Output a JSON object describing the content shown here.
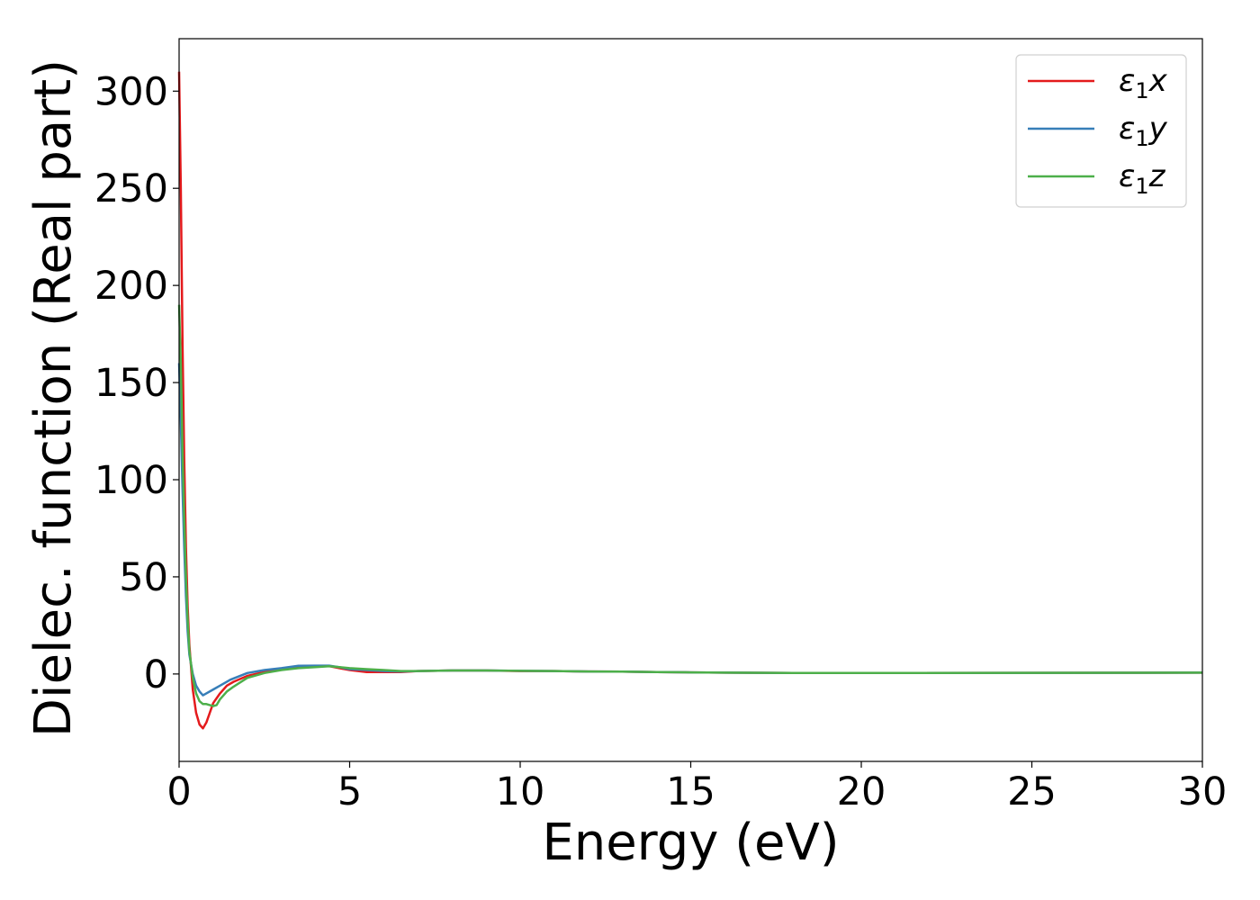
{
  "chart_data": {
    "type": "line",
    "title": "",
    "xlabel": "Energy (eV)",
    "ylabel": "Dielec. function (Real part)",
    "xlim": [
      0,
      30
    ],
    "ylim": [
      -45,
      327
    ],
    "xticks": [
      0,
      5,
      10,
      15,
      20,
      25,
      30
    ],
    "yticks": [
      0,
      50,
      100,
      150,
      200,
      250,
      300
    ],
    "grid": false,
    "legend_position": "top-right",
    "series": [
      {
        "name": "ε1x",
        "legend_base": "ε",
        "legend_sub": "1",
        "legend_suffix": "x",
        "color": "#e41a1c",
        "x": [
          0.0,
          0.05,
          0.1,
          0.15,
          0.2,
          0.25,
          0.3,
          0.4,
          0.5,
          0.6,
          0.7,
          0.8,
          0.9,
          1.0,
          1.2,
          1.4,
          1.6,
          2.0,
          2.5,
          3.0,
          3.5,
          4.0,
          4.4,
          4.7,
          5.0,
          5.5,
          6.0,
          6.5,
          7.0,
          8.0,
          9.0,
          10.0,
          11.0,
          12.0,
          13.0,
          14.0,
          15.0,
          16.0,
          18.0,
          20.0,
          25.0,
          30.0
        ],
        "values": [
          310,
          250,
          170,
          110,
          65,
          35,
          15,
          -8,
          -20,
          -26,
          -28,
          -25,
          -20,
          -15,
          -10,
          -6,
          -4,
          -1,
          1,
          2.5,
          3.5,
          4,
          4,
          3,
          2,
          1,
          1,
          1,
          1.5,
          1.8,
          1.8,
          1.5,
          1.5,
          1.3,
          1.2,
          1.0,
          0.8,
          0.7,
          0.5,
          0.5,
          0.6,
          0.7
        ]
      },
      {
        "name": "ε1y",
        "legend_base": "ε",
        "legend_sub": "1",
        "legend_suffix": "y",
        "color": "#377eb8",
        "x": [
          0.0,
          0.05,
          0.1,
          0.15,
          0.2,
          0.25,
          0.3,
          0.4,
          0.5,
          0.6,
          0.7,
          0.8,
          1.0,
          1.2,
          1.5,
          2.0,
          2.5,
          3.0,
          3.5,
          4.0,
          4.4,
          4.7,
          5.0,
          5.5,
          6.0,
          6.5,
          7.0,
          8.0,
          9.0,
          10.0,
          11.0,
          12.0,
          13.0,
          14.0,
          15.0,
          16.0,
          18.0,
          20.0,
          25.0,
          30.0
        ],
        "values": [
          160,
          130,
          95,
          65,
          40,
          22,
          10,
          0,
          -6,
          -9,
          -11,
          -10,
          -8,
          -6,
          -3,
          0.5,
          2,
          3,
          4.2,
          4.3,
          4.3,
          3.5,
          2.5,
          2,
          1.5,
          1.3,
          1.5,
          1.8,
          1.8,
          1.6,
          1.5,
          1.3,
          1.2,
          1.0,
          0.8,
          0.7,
          0.5,
          0.5,
          0.6,
          0.7
        ]
      },
      {
        "name": "ε1z",
        "legend_base": "ε",
        "legend_sub": "1",
        "legend_suffix": "z",
        "color": "#4daf4a",
        "x": [
          0.0,
          0.05,
          0.1,
          0.15,
          0.2,
          0.25,
          0.3,
          0.4,
          0.5,
          0.6,
          0.7,
          0.8,
          0.9,
          1.0,
          1.1,
          1.2,
          1.4,
          1.6,
          2.0,
          2.5,
          3.0,
          3.5,
          4.0,
          4.4,
          4.7,
          5.0,
          5.5,
          6.0,
          6.5,
          7.0,
          8.0,
          9.0,
          10.0,
          11.0,
          12.0,
          13.0,
          14.0,
          15.0,
          16.0,
          18.0,
          20.0,
          25.0,
          30.0
        ],
        "values": [
          190,
          160,
          115,
          80,
          50,
          28,
          12,
          -2,
          -10,
          -14,
          -15.5,
          -15.5,
          -16,
          -16.5,
          -16,
          -13,
          -9,
          -6.5,
          -2,
          0.5,
          2,
          3,
          3.5,
          4,
          3.5,
          3,
          2.5,
          2,
          1.5,
          1.5,
          1.8,
          1.8,
          1.6,
          1.5,
          1.3,
          1.2,
          1.0,
          0.8,
          0.7,
          0.5,
          0.5,
          0.6,
          0.7
        ]
      }
    ]
  }
}
